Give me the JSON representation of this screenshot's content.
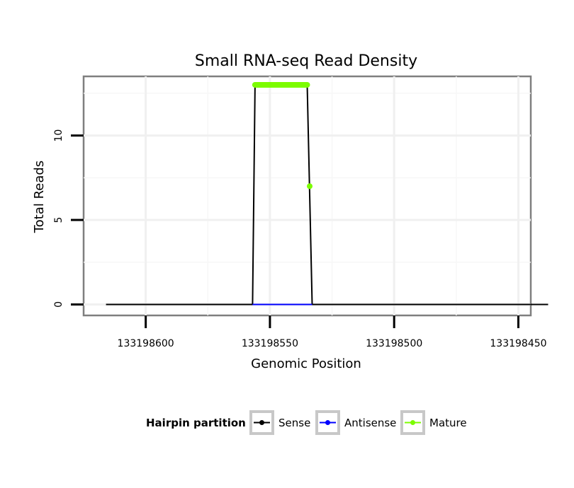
{
  "chart_data": {
    "type": "line",
    "title": "Small RNA-seq Read Density",
    "xlabel": "Genomic Position",
    "ylabel": "Total Reads",
    "x_reversed": true,
    "xlim": [
      133198625,
      133198445
    ],
    "ylim": [
      -0.65,
      13.5
    ],
    "x_ticks": [
      133198600,
      133198550,
      133198500,
      133198450
    ],
    "x_tick_labels": [
      "133198600",
      "133198550",
      "133198500",
      "133198450"
    ],
    "y_ticks": [
      0,
      5,
      10
    ],
    "y_tick_labels": [
      "0",
      "5",
      "10"
    ],
    "grid": true,
    "legend": {
      "title": "Hairpin partition",
      "position": "bottom",
      "entries": [
        "Sense",
        "Antisense",
        "Mature"
      ]
    },
    "series": [
      {
        "name": "Sense",
        "color": "#000000",
        "points": [
          [
            133198616,
            0
          ],
          [
            133198557,
            0
          ],
          [
            133198556,
            13
          ],
          [
            133198535,
            13
          ],
          [
            133198533,
            0
          ],
          [
            133198438,
            0
          ]
        ]
      },
      {
        "name": "Antisense",
        "color": "#0000ff",
        "points": [
          [
            133198557,
            0
          ],
          [
            133198533,
            0
          ]
        ]
      },
      {
        "name": "Mature",
        "color": "#7cfc00",
        "x_range": [
          133198556,
          133198535
        ],
        "points": [
          [
            133198556,
            13
          ],
          [
            133198535,
            13
          ],
          [
            133198534,
            7
          ]
        ]
      }
    ]
  }
}
